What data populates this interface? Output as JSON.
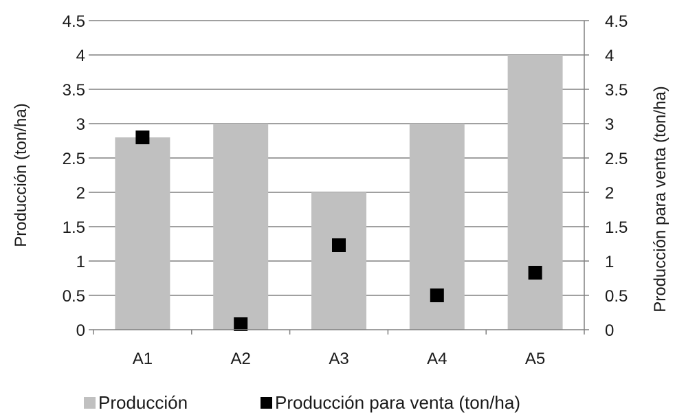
{
  "chart_data": {
    "type": "bar",
    "categories": [
      "A1",
      "A2",
      "A3",
      "A4",
      "A5"
    ],
    "series": [
      {
        "name": "Producción",
        "kind": "bar",
        "axis": "left",
        "color": "#c0c0c0",
        "values": [
          2.8,
          3.0,
          2.0,
          3.0,
          4.0
        ]
      },
      {
        "name": "Producción para venta (ton/ha)",
        "kind": "scatter",
        "axis": "right",
        "color": "#000000",
        "values": [
          2.8,
          0.08,
          1.23,
          0.5,
          0.83
        ]
      }
    ],
    "title": "",
    "xlabel": "",
    "ylabel": "Producción (ton/ha)",
    "y2label": "Producción para venta (ton/ha)",
    "ylim": [
      0,
      4.5
    ],
    "y2lim": [
      0,
      4.5
    ],
    "yticks": [
      "0",
      "0.5",
      "1",
      "1.5",
      "2",
      "2.5",
      "3",
      "3.5",
      "4",
      "4.5"
    ],
    "y2ticks": [
      "0",
      "0.5",
      "1",
      "1.5",
      "2",
      "2.5",
      "3",
      "3.5",
      "4",
      "4.5"
    ],
    "grid": true,
    "legend_position": "bottom"
  }
}
